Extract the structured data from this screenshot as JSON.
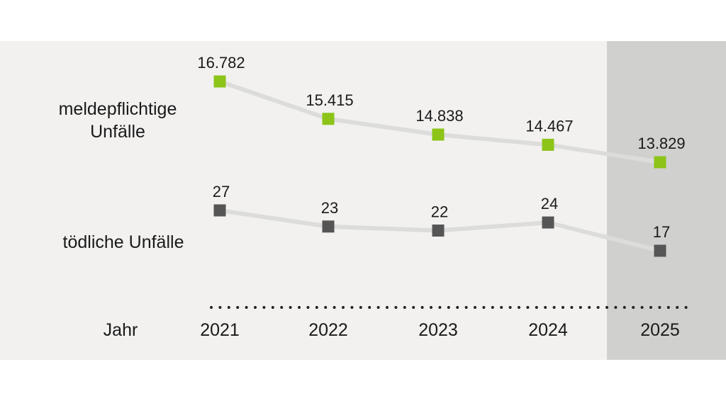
{
  "chart_data": {
    "type": "line",
    "x_axis_label": "Jahr",
    "categories": [
      "2021",
      "2022",
      "2023",
      "2024",
      "2025"
    ],
    "highlighted_category": "2025",
    "series": [
      {
        "name_lines": [
          "meldepflichtige",
          "Unfälle"
        ],
        "values": [
          16782,
          15415,
          14838,
          14467,
          13829
        ],
        "value_labels": [
          "16.782",
          "15.415",
          "14.838",
          "14.467",
          "13.829"
        ],
        "marker_color": "#8cc418"
      },
      {
        "name_lines": [
          "tödliche Unfälle"
        ],
        "values": [
          27,
          23,
          22,
          24,
          17
        ],
        "value_labels": [
          "27",
          "23",
          "22",
          "24",
          "17"
        ],
        "marker_color": "#555555"
      }
    ]
  },
  "colors": {
    "panel_background": "#f2f1f0",
    "highlight_background": "#d0d0cf",
    "connector_line": "#dcdcdb",
    "dotted_axis": "#222222"
  }
}
